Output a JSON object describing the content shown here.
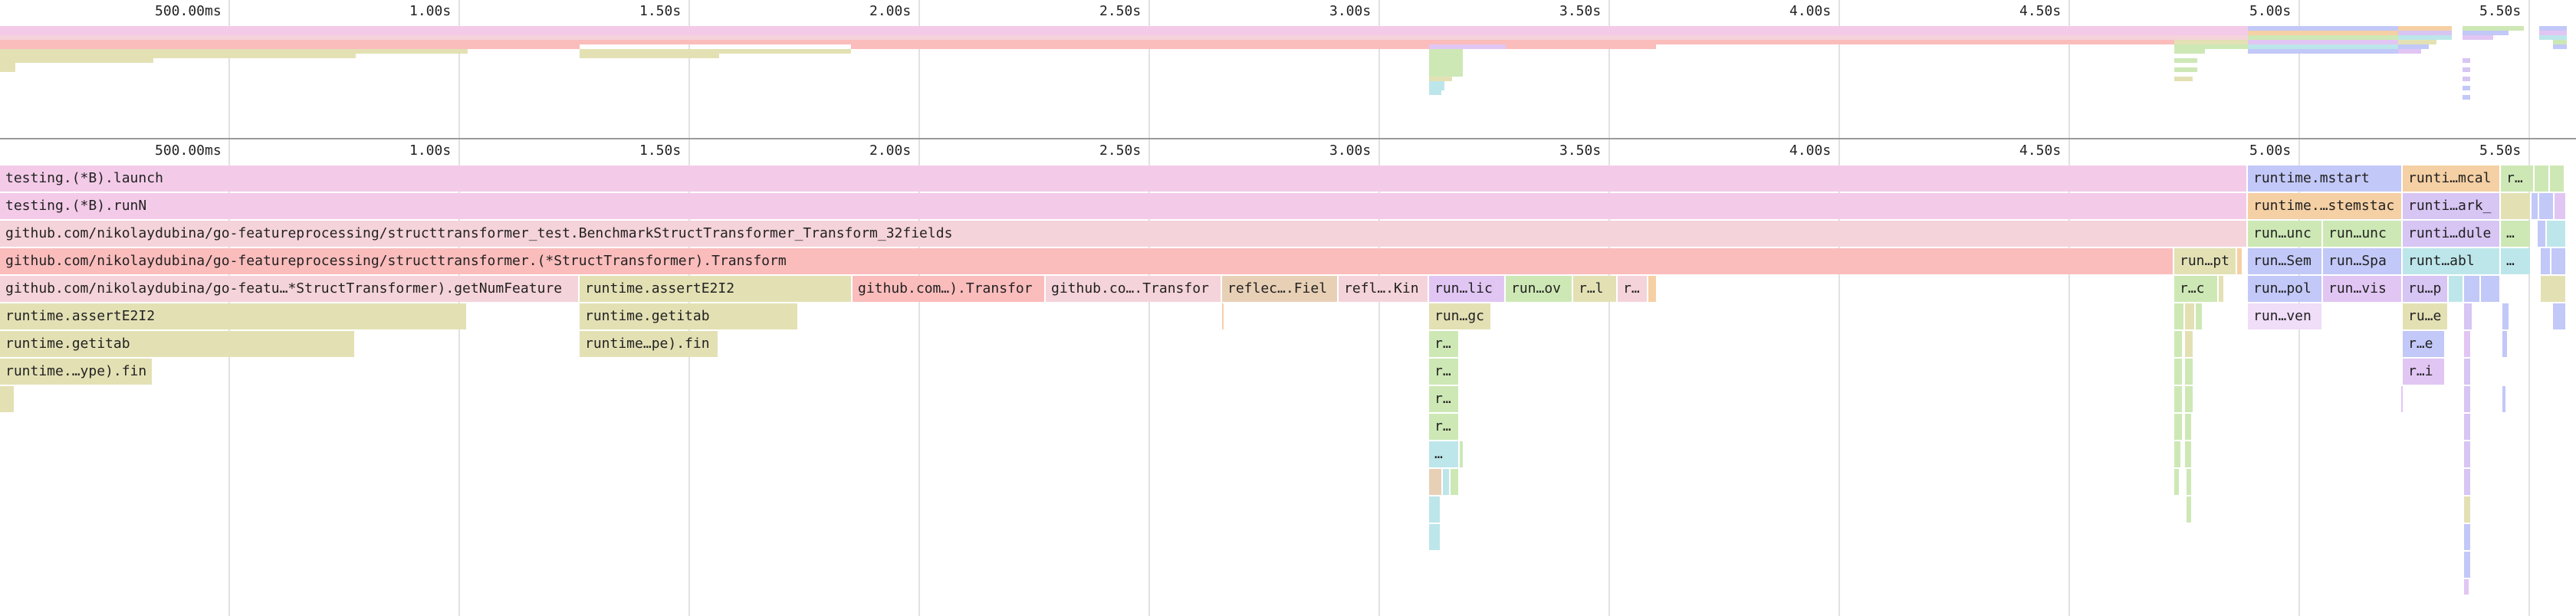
{
  "timeline": {
    "ticks": [
      "500.00ms",
      "1.00s",
      "1.50s",
      "2.00s",
      "2.50s",
      "3.00s",
      "3.50s",
      "4.00s",
      "4.50s",
      "5.00s",
      "5.50s"
    ]
  },
  "colors": {
    "pink": "#f3cbe8",
    "lightpink": "#f5d3da",
    "salmon": "#fbbcbc",
    "olive": "#e3e1b4",
    "tan": "#e8d0b6",
    "purple": "#e1c6f4",
    "green": "#cde8b5",
    "blue": "#c2c8f7",
    "orange": "#f5d0a4",
    "cyan": "#bde6ea",
    "lavender": "#d7c5f4"
  },
  "frames": {
    "row1": {
      "launch": "testing.(*B).launch",
      "mstart": "runtime.mstart",
      "mcal": "runti…mcal",
      "r": "r…"
    },
    "row2": {
      "runN": "testing.(*B).runN",
      "stemstac": "runtime.…stemstac",
      "ark": "runti…ark_"
    },
    "row3": {
      "benchmark": "github.com/nikolaydubina/go-featureprocessing/structtransformer_test.BenchmarkStructTransformer_Transform_32fields",
      "unc1": "run…unc",
      "unc2": "run…unc",
      "dule": "runti…dule",
      "dots": "…"
    },
    "row4": {
      "transform": "github.com/nikolaydubina/go-featureprocessing/structtransformer.(*StructTransformer).Transform",
      "pt": "run…pt",
      "sem": "run…Sem",
      "spa": "run…Spa",
      "abl": "runt…abl",
      "dots": "…"
    },
    "row5": {
      "getNumFeature": "github.com/nikolaydubina/go-featu…*StructTransformer).getNumFeature",
      "assertE2I2": "runtime.assertE2I2",
      "transfor1": "github.com…).Transfor",
      "transfor2": "github.co….Transfor",
      "fiel": "reflec….Fiel",
      "kin": "refl….Kin",
      "lic": "run…lic",
      "ov": "run…ov",
      "rl": "r…l",
      "r": "r…",
      "c": "r…c",
      "pol": "run…pol",
      "vis": "run…vis",
      "p": "ru…p"
    },
    "row6": {
      "assertE2I2": "runtime.assertE2I2",
      "getitab": "runtime.getitab",
      "gc": "run…gc",
      "ven": "run…ven",
      "e": "ru…e"
    },
    "row7": {
      "getitab": "runtime.getitab",
      "fin": "runtime…pe).fin",
      "r": "r…",
      "e": "r…e"
    },
    "row8": {
      "fin": "runtime.…ype).fin",
      "r": "r…",
      "i": "r…i"
    },
    "row9": {
      "r": "r…"
    },
    "row10": {
      "r": "r…"
    },
    "row11": {
      "dots": "…"
    }
  }
}
